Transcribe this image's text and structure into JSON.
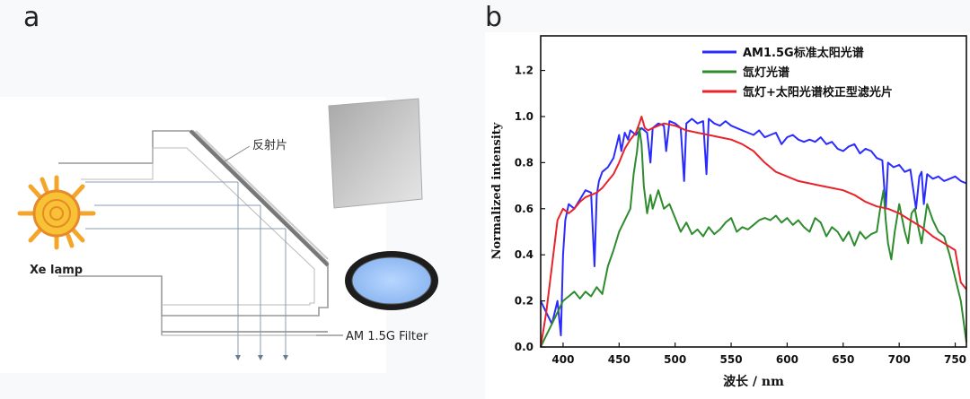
{
  "panel_a": {
    "label": "a",
    "reflector_label": "反射片",
    "lamp_label": "Xe lamp",
    "filter_label": "AM 1.5G Filter"
  },
  "panel_b": {
    "label": "b"
  },
  "chart_data": {
    "type": "line",
    "title": "",
    "xlabel": "波长 / nm",
    "ylabel": "Normalized intensity",
    "xlim": [
      380,
      760
    ],
    "ylim": [
      0,
      1.35
    ],
    "x_ticks": [
      400,
      450,
      500,
      550,
      600,
      650,
      700,
      750
    ],
    "y_ticks": [
      0.0,
      0.2,
      0.4,
      0.6,
      0.8,
      1.0,
      1.2
    ],
    "y_tick_labels": [
      "0.0",
      "0.2",
      "0.4",
      "0.6",
      "0.8",
      "1.0",
      "1.2"
    ],
    "legend_position": "top-right",
    "colors": {
      "am15g": "#2b2bff",
      "xe": "#2e8b2e",
      "filtered": "#e8232b"
    },
    "series": [
      {
        "name": "AM1.5G标准太阳光谱",
        "color_key": "am15g",
        "x": [
          380,
          385,
          390,
          395,
          398,
          400,
          402,
          405,
          410,
          415,
          420,
          425,
          428,
          430,
          432,
          435,
          440,
          445,
          448,
          450,
          452,
          455,
          458,
          460,
          465,
          470,
          475,
          478,
          480,
          485,
          490,
          492,
          495,
          500,
          505,
          508,
          510,
          515,
          520,
          525,
          528,
          530,
          535,
          540,
          545,
          550,
          555,
          560,
          565,
          570,
          575,
          580,
          585,
          590,
          595,
          600,
          605,
          610,
          615,
          620,
          625,
          630,
          635,
          640,
          645,
          650,
          655,
          660,
          665,
          670,
          675,
          680,
          685,
          688,
          690,
          695,
          700,
          705,
          710,
          715,
          718,
          720,
          722,
          725,
          730,
          735,
          740,
          745,
          750,
          755,
          760
        ],
        "y": [
          0.2,
          0.15,
          0.1,
          0.2,
          0.05,
          0.4,
          0.55,
          0.62,
          0.6,
          0.64,
          0.68,
          0.67,
          0.35,
          0.66,
          0.72,
          0.76,
          0.78,
          0.82,
          0.88,
          0.92,
          0.85,
          0.93,
          0.9,
          0.94,
          0.92,
          0.95,
          0.93,
          0.8,
          0.95,
          0.97,
          0.96,
          0.85,
          0.98,
          0.97,
          0.95,
          0.72,
          0.97,
          0.99,
          0.97,
          0.98,
          0.75,
          0.99,
          0.97,
          0.96,
          0.98,
          0.96,
          0.95,
          0.94,
          0.93,
          0.92,
          0.94,
          0.91,
          0.92,
          0.93,
          0.88,
          0.91,
          0.92,
          0.9,
          0.89,
          0.9,
          0.89,
          0.91,
          0.88,
          0.89,
          0.86,
          0.85,
          0.87,
          0.88,
          0.84,
          0.86,
          0.85,
          0.82,
          0.81,
          0.6,
          0.8,
          0.78,
          0.79,
          0.76,
          0.77,
          0.6,
          0.74,
          0.76,
          0.62,
          0.75,
          0.73,
          0.74,
          0.72,
          0.73,
          0.74,
          0.72,
          0.71
        ]
      },
      {
        "name": "氙灯光谱",
        "color_key": "xe",
        "x": [
          380,
          385,
          390,
          395,
          400,
          405,
          410,
          415,
          420,
          425,
          430,
          435,
          440,
          445,
          450,
          455,
          460,
          463,
          466,
          468,
          470,
          472,
          475,
          478,
          480,
          485,
          490,
          495,
          500,
          505,
          510,
          515,
          520,
          525,
          530,
          535,
          540,
          545,
          550,
          555,
          560,
          565,
          570,
          575,
          580,
          585,
          590,
          595,
          600,
          605,
          610,
          615,
          620,
          625,
          630,
          635,
          640,
          645,
          650,
          655,
          660,
          665,
          670,
          675,
          680,
          683,
          686,
          688,
          690,
          693,
          696,
          700,
          705,
          708,
          711,
          714,
          717,
          720,
          725,
          730,
          735,
          740,
          745,
          750,
          755,
          760
        ],
        "y": [
          0.0,
          0.05,
          0.1,
          0.15,
          0.2,
          0.22,
          0.24,
          0.21,
          0.24,
          0.22,
          0.26,
          0.23,
          0.35,
          0.42,
          0.5,
          0.55,
          0.6,
          0.75,
          0.85,
          0.95,
          0.88,
          0.7,
          0.58,
          0.66,
          0.6,
          0.68,
          0.6,
          0.62,
          0.56,
          0.5,
          0.54,
          0.49,
          0.51,
          0.48,
          0.52,
          0.49,
          0.51,
          0.54,
          0.56,
          0.5,
          0.52,
          0.51,
          0.53,
          0.55,
          0.56,
          0.55,
          0.57,
          0.54,
          0.56,
          0.53,
          0.55,
          0.52,
          0.5,
          0.56,
          0.54,
          0.48,
          0.52,
          0.5,
          0.46,
          0.5,
          0.44,
          0.5,
          0.47,
          0.49,
          0.5,
          0.6,
          0.68,
          0.55,
          0.45,
          0.38,
          0.5,
          0.62,
          0.5,
          0.45,
          0.58,
          0.6,
          0.52,
          0.45,
          0.62,
          0.55,
          0.5,
          0.48,
          0.4,
          0.3,
          0.2,
          0.02
        ]
      },
      {
        "name": "氙灯+太阳光谱校正型滤光片",
        "color_key": "filtered",
        "x": [
          380,
          385,
          390,
          395,
          400,
          405,
          410,
          415,
          420,
          425,
          430,
          435,
          440,
          445,
          450,
          455,
          460,
          465,
          468,
          470,
          473,
          476,
          480,
          485,
          490,
          500,
          510,
          520,
          530,
          540,
          550,
          560,
          570,
          580,
          590,
          600,
          610,
          620,
          630,
          640,
          650,
          660,
          670,
          680,
          690,
          700,
          710,
          720,
          730,
          740,
          750,
          755,
          760
        ],
        "y": [
          0.0,
          0.15,
          0.35,
          0.55,
          0.6,
          0.58,
          0.6,
          0.63,
          0.65,
          0.66,
          0.67,
          0.69,
          0.72,
          0.75,
          0.8,
          0.86,
          0.9,
          0.93,
          0.97,
          1.0,
          0.95,
          0.94,
          0.95,
          0.96,
          0.97,
          0.96,
          0.94,
          0.93,
          0.92,
          0.91,
          0.9,
          0.88,
          0.85,
          0.8,
          0.76,
          0.74,
          0.72,
          0.71,
          0.7,
          0.69,
          0.68,
          0.66,
          0.63,
          0.61,
          0.6,
          0.58,
          0.55,
          0.52,
          0.48,
          0.45,
          0.42,
          0.28,
          0.25
        ]
      }
    ]
  }
}
